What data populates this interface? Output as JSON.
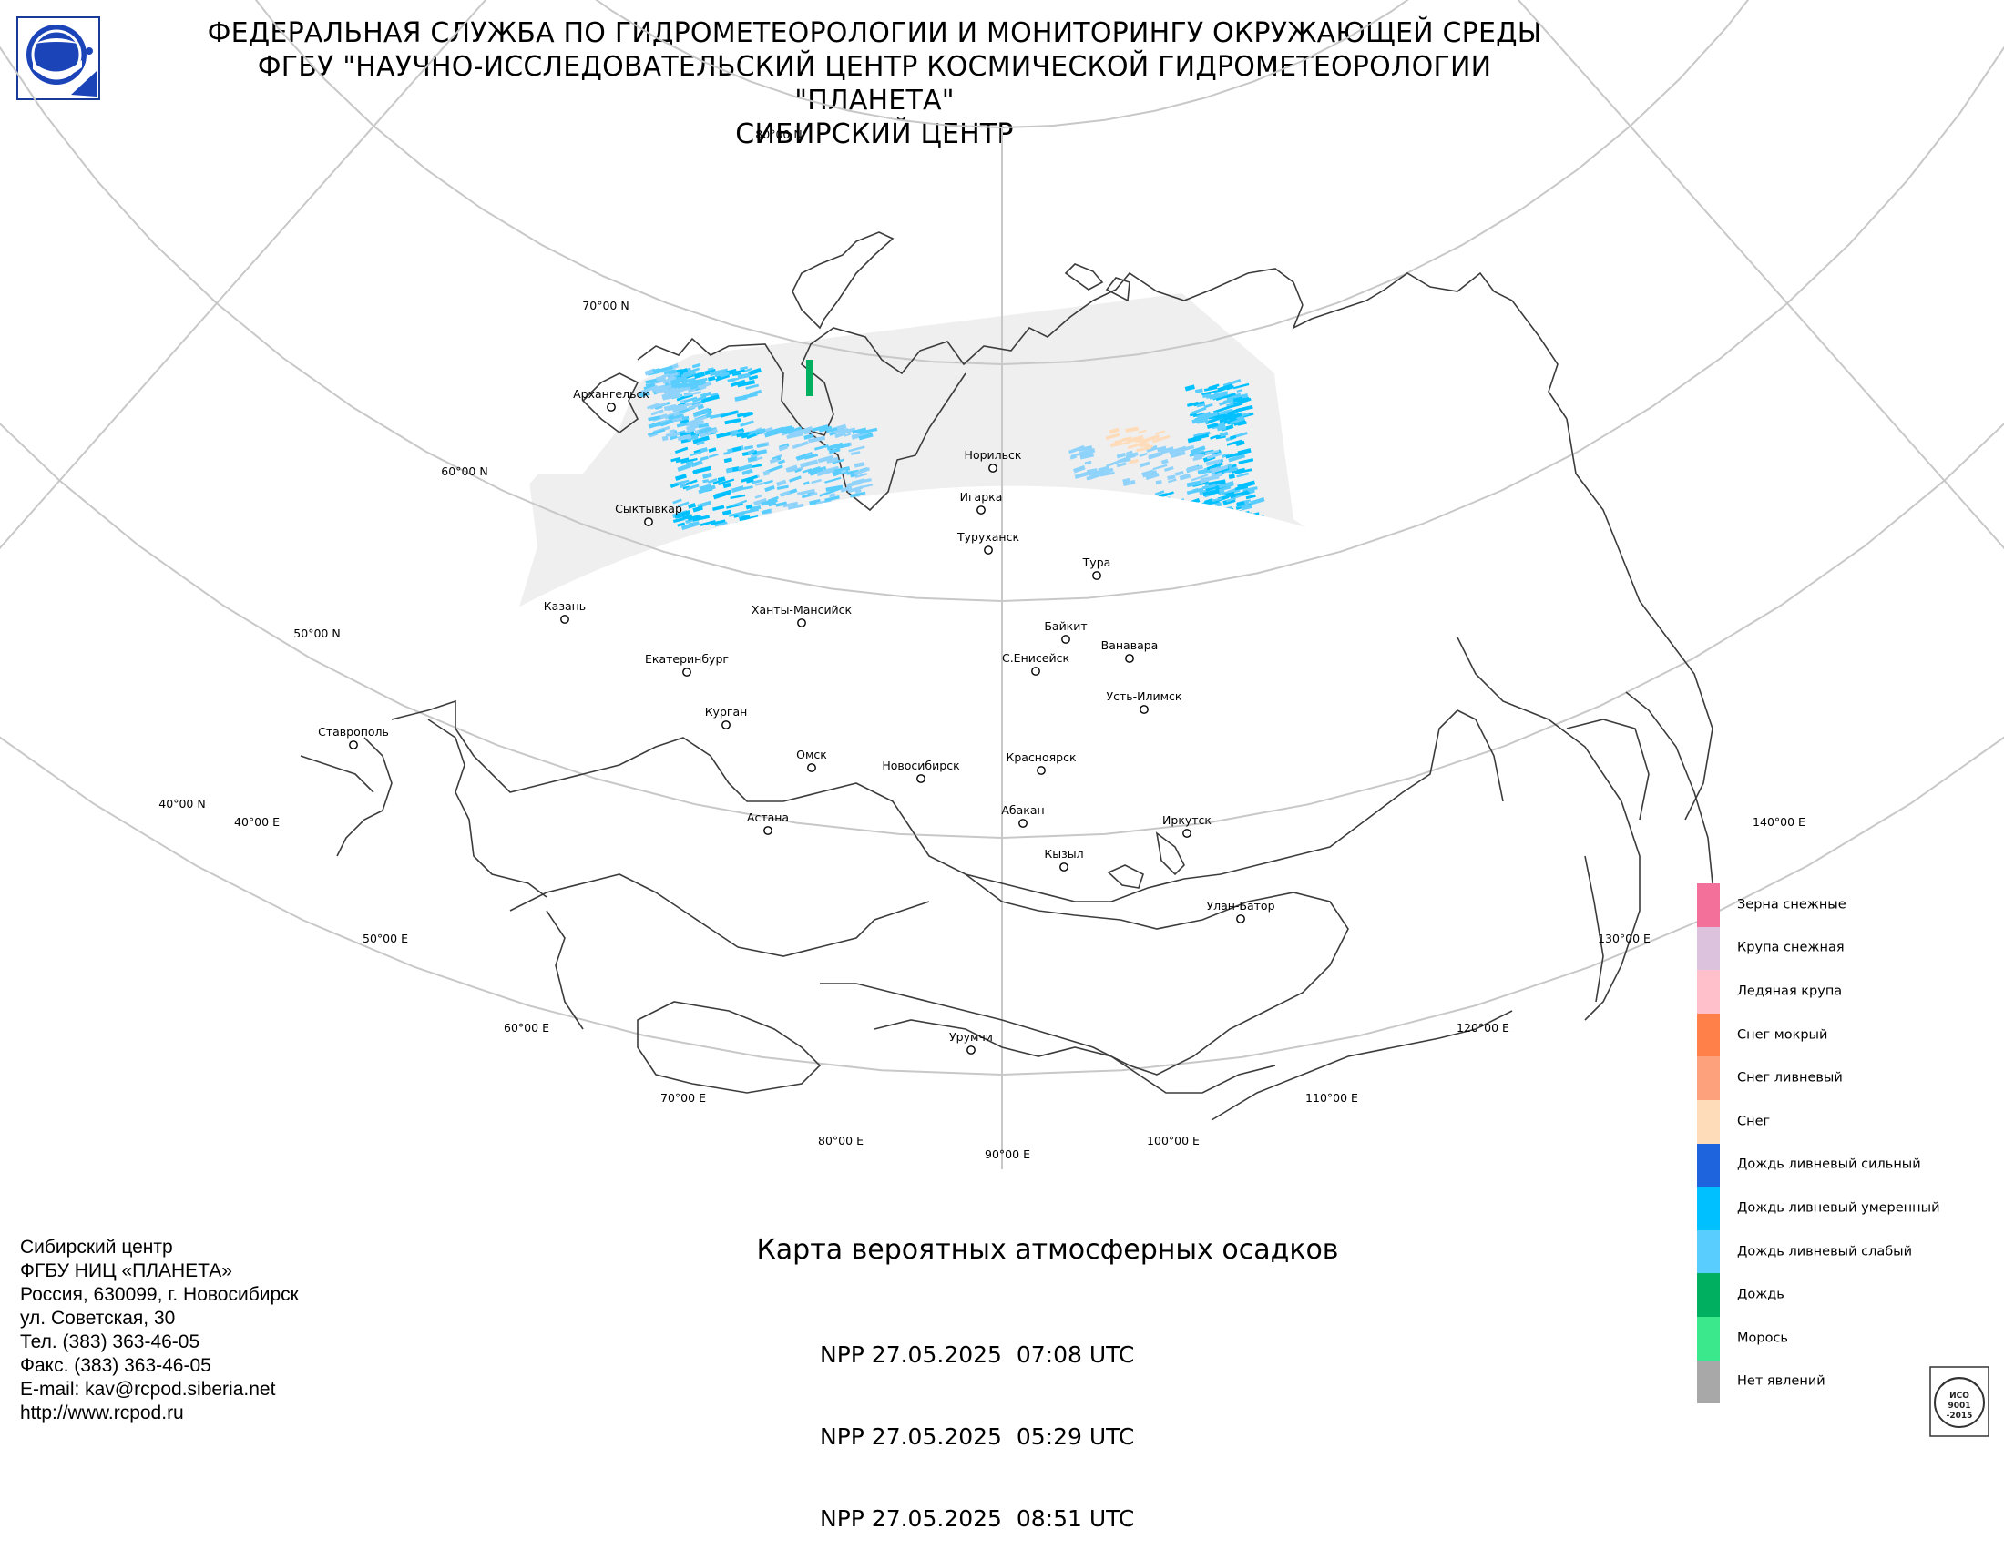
{
  "header": {
    "line1": "ФЕДЕРАЛЬНАЯ СЛУЖБА ПО ГИДРОМЕТЕОРОЛОГИИ И МОНИТОРИНГУ ОКРУЖАЮЩЕЙ СРЕДЫ",
    "line2": "ФГБУ \"НАУЧНО-ИССЛЕДОВАТЕЛЬСКИЙ ЦЕНТР КОСМИЧЕСКОЙ ГИДРОМЕТЕОРОЛОГИИ \"ПЛАНЕТА\"",
    "line3": "СИБИРСКИЙ ЦЕНТР"
  },
  "map": {
    "title": "Карта вероятных атмосферных осадков",
    "passes": [
      "NPP 27.05.2025  07:08 UTC",
      "NPP 27.05.2025  05:29 UTC",
      "NPP 27.05.2025  08:51 UTC"
    ],
    "lat_labels": [
      "80°00 N",
      "70°00 N",
      "60°00 N",
      "50°00 N",
      "40°00 N"
    ],
    "lon_labels": [
      "40°00 E",
      "50°00 E",
      "60°00 E",
      "70°00 E",
      "80°00 E",
      "90°00 E",
      "100°00 E",
      "110°00 E",
      "120°00 E",
      "130°00 E",
      "140°00 E"
    ],
    "cities": [
      "Архангельск",
      "Сыктывкар",
      "Казань",
      "Екатеринбург",
      "Ставрополь",
      "Курган",
      "Ханты-Мансийск",
      "Омск",
      "Астана",
      "Новосибирск",
      "Норильск",
      "Игарка",
      "Туруханск",
      "Тура",
      "Байкит",
      "Ванавара",
      "С.Енисейск",
      "Усть-Илимск",
      "Красноярск",
      "Абакан",
      "Кызыл",
      "Иркутск",
      "Улан-Батор",
      "Урумчи"
    ]
  },
  "legend": [
    {
      "label": "Зерна снежные",
      "color": "#f3709a"
    },
    {
      "label": "Крупа снежная",
      "color": "#dcc2dc"
    },
    {
      "label": "Ледяная крупа",
      "color": "#ffc0cc"
    },
    {
      "label": "Снег мокрый",
      "color": "#ff8048"
    },
    {
      "label": "Снег ливневый",
      "color": "#fda07c"
    },
    {
      "label": "Снег",
      "color": "#fedcba"
    },
    {
      "label": "Дождь ливневый сильный",
      "color": "#1e64dc"
    },
    {
      "label": "Дождь ливневый умеренный",
      "color": "#00c0ff"
    },
    {
      "label": "Дождь ливневый слабый",
      "color": "#5acdff"
    },
    {
      "label": "Дождь",
      "color": "#00b060"
    },
    {
      "label": "Морось",
      "color": "#3ce88c"
    },
    {
      "label": "Нет явлений",
      "color": "#a8a8a8"
    }
  ],
  "contacts": [
    "Сибирский центр",
    "ФГБУ НИЦ «ПЛАНЕТА»",
    "Россия, 630099, г. Новосибирск",
    "ул. Советская, 30",
    "Тел. (383) 363-46-05",
    "Факс. (383) 363-46-05",
    "E-mail: kav@rcpod.siberia.net",
    "http://www.rcpod.ru"
  ],
  "iso_badge": {
    "text1": "ИСО",
    "text2": "9001",
    "text3": "-2015"
  },
  "colors": {
    "coverage": "#efefef",
    "grid": "#c8c8c8",
    "coast": "#3c3c3c"
  }
}
